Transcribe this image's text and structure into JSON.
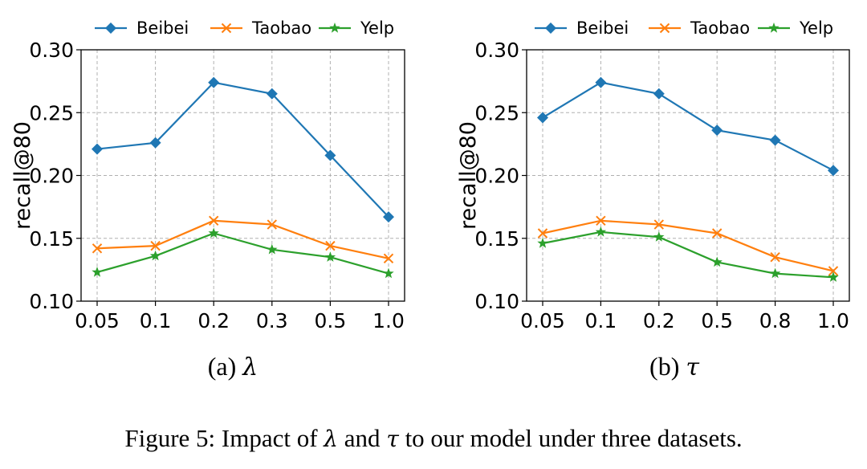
{
  "chart_data": [
    {
      "type": "line",
      "subcaption_label": "(a)",
      "subcaption_symbol": "λ",
      "xlabel": "",
      "ylabel": "recall@80",
      "categories": [
        "0.05",
        "0.1",
        "0.2",
        "0.3",
        "0.5",
        "1.0"
      ],
      "ylim": [
        0.1,
        0.3
      ],
      "yticks": [
        "0.10",
        "0.15",
        "0.20",
        "0.25",
        "0.30"
      ],
      "grid": true,
      "legend_position": "top",
      "series": [
        {
          "name": "Beibei",
          "marker": "diamond",
          "color": "#1f77b4",
          "values": [
            0.221,
            0.226,
            0.274,
            0.265,
            0.216,
            0.167
          ]
        },
        {
          "name": "Taobao",
          "marker": "x",
          "color": "#ff7f0e",
          "values": [
            0.142,
            0.144,
            0.164,
            0.161,
            0.144,
            0.134
          ]
        },
        {
          "name": "Yelp",
          "marker": "star",
          "color": "#2ca02c",
          "values": [
            0.123,
            0.136,
            0.154,
            0.141,
            0.135,
            0.122
          ]
        }
      ]
    },
    {
      "type": "line",
      "subcaption_label": "(b)",
      "subcaption_symbol": "τ",
      "xlabel": "",
      "ylabel": "recall@80",
      "categories": [
        "0.05",
        "0.1",
        "0.2",
        "0.5",
        "0.8",
        "1.0"
      ],
      "ylim": [
        0.1,
        0.3
      ],
      "yticks": [
        "0.10",
        "0.15",
        "0.20",
        "0.25",
        "0.30"
      ],
      "grid": true,
      "legend_position": "top",
      "series": [
        {
          "name": "Beibei",
          "marker": "diamond",
          "color": "#1f77b4",
          "values": [
            0.246,
            0.274,
            0.265,
            0.236,
            0.228,
            0.204
          ]
        },
        {
          "name": "Taobao",
          "marker": "x",
          "color": "#ff7f0e",
          "values": [
            0.154,
            0.164,
            0.161,
            0.154,
            0.135,
            0.124
          ]
        },
        {
          "name": "Yelp",
          "marker": "star",
          "color": "#2ca02c",
          "values": [
            0.146,
            0.155,
            0.151,
            0.131,
            0.122,
            0.119
          ]
        }
      ]
    }
  ],
  "caption": {
    "prefix": "Figure 5:  Impact of ",
    "sym1": "λ",
    "mid": " and ",
    "sym2": "τ",
    "suffix": " to our model under three datasets."
  }
}
